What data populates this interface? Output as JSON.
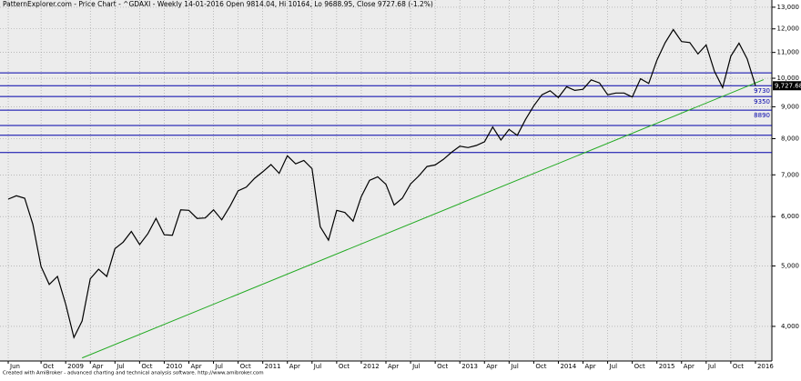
{
  "chart_data": {
    "type": "line",
    "title": "PatternExplorer.com - Price Chart - ^GDAXI - Weekly 14-01-2016 Open 9814.04, Hi 10164, Lo 9688.95, Close 9727.68 (-1.2%)",
    "footer": "Created with AmiBroker - advanced charting and technical analysis software. http://www.amibroker.com",
    "log_scale": true,
    "grid": true,
    "color": "#000000",
    "x": [
      "2008-06",
      "2008-07",
      "2008-08",
      "2008-09",
      "2008-10",
      "2008-11",
      "2008-12",
      "2009-01",
      "2009-02",
      "2009-03",
      "2009-04",
      "2009-05",
      "2009-06",
      "2009-07",
      "2009-08",
      "2009-09",
      "2009-10",
      "2009-11",
      "2009-12",
      "2010-01",
      "2010-02",
      "2010-03",
      "2010-04",
      "2010-05",
      "2010-06",
      "2010-07",
      "2010-08",
      "2010-09",
      "2010-10",
      "2010-11",
      "2010-12",
      "2011-01",
      "2011-02",
      "2011-03",
      "2011-04",
      "2011-05",
      "2011-06",
      "2011-07",
      "2011-08",
      "2011-09",
      "2011-10",
      "2011-11",
      "2011-12",
      "2012-01",
      "2012-02",
      "2012-03",
      "2012-04",
      "2012-05",
      "2012-06",
      "2012-07",
      "2012-08",
      "2012-09",
      "2012-10",
      "2012-11",
      "2012-12",
      "2013-01",
      "2013-02",
      "2013-03",
      "2013-04",
      "2013-05",
      "2013-06",
      "2013-07",
      "2013-08",
      "2013-09",
      "2013-10",
      "2013-11",
      "2013-12",
      "2014-01",
      "2014-02",
      "2014-03",
      "2014-04",
      "2014-05",
      "2014-06",
      "2014-07",
      "2014-08",
      "2014-09",
      "2014-10",
      "2014-11",
      "2014-12",
      "2015-01",
      "2015-02",
      "2015-03",
      "2015-04",
      "2015-05",
      "2015-06",
      "2015-07",
      "2015-08",
      "2015-09",
      "2015-10",
      "2015-11",
      "2015-12",
      "2016-01"
    ],
    "values": [
      6400,
      6480,
      6420,
      5830,
      4990,
      4670,
      4810,
      4340,
      3840,
      4080,
      4770,
      4940,
      4810,
      5330,
      5460,
      5680,
      5410,
      5630,
      5960,
      5610,
      5600,
      6150,
      6140,
      5960,
      5970,
      6150,
      5930,
      6230,
      6600,
      6690,
      6910,
      7080,
      7270,
      7040,
      7510,
      7290,
      7380,
      7160,
      5780,
      5500,
      6140,
      6090,
      5900,
      6460,
      6860,
      6950,
      6760,
      6260,
      6420,
      6770,
      6970,
      7220,
      7260,
      7410,
      7610,
      7780,
      7740,
      7800,
      7910,
      8350,
      7960,
      8280,
      8100,
      8590,
      9030,
      9410,
      9550,
      9310,
      9690,
      9560,
      9600,
      9940,
      9830,
      9410,
      9470,
      9470,
      9330,
      9980,
      9810,
      10690,
      11400,
      11970,
      11450,
      11410,
      10940,
      11310,
      10260,
      9660,
      10850,
      11380,
      10740,
      9727.68
    ],
    "last_label": "9,727.68",
    "xlim": [
      "2008-05",
      "2016-03"
    ],
    "xticks": [
      {
        "value": "2008-06",
        "label": "Jun"
      },
      {
        "value": "2008-10",
        "label": "Oct"
      },
      {
        "value": "2009-01",
        "label": "2009"
      },
      {
        "value": "2009-04",
        "label": "Apr"
      },
      {
        "value": "2009-07",
        "label": "Jul"
      },
      {
        "value": "2009-10",
        "label": "Oct"
      },
      {
        "value": "2010-01",
        "label": "2010"
      },
      {
        "value": "2010-04",
        "label": "Apr"
      },
      {
        "value": "2010-07",
        "label": "Jul"
      },
      {
        "value": "2010-10",
        "label": "Oct"
      },
      {
        "value": "2011-01",
        "label": "2011"
      },
      {
        "value": "2011-04",
        "label": "Apr"
      },
      {
        "value": "2011-07",
        "label": "Jul"
      },
      {
        "value": "2011-10",
        "label": "Oct"
      },
      {
        "value": "2012-01",
        "label": "2012"
      },
      {
        "value": "2012-04",
        "label": "Apr"
      },
      {
        "value": "2012-07",
        "label": "Jul"
      },
      {
        "value": "2012-10",
        "label": "Oct"
      },
      {
        "value": "2013-01",
        "label": "2013"
      },
      {
        "value": "2013-04",
        "label": "Apr"
      },
      {
        "value": "2013-07",
        "label": "Jul"
      },
      {
        "value": "2013-10",
        "label": "Oct"
      },
      {
        "value": "2014-01",
        "label": "2014"
      },
      {
        "value": "2014-04",
        "label": "Apr"
      },
      {
        "value": "2014-07",
        "label": "Jul"
      },
      {
        "value": "2014-10",
        "label": "Oct"
      },
      {
        "value": "2015-01",
        "label": "2015"
      },
      {
        "value": "2015-04",
        "label": "Apr"
      },
      {
        "value": "2015-07",
        "label": "Jul"
      },
      {
        "value": "2015-10",
        "label": "Oct"
      },
      {
        "value": "2016-01",
        "label": "2016"
      }
    ],
    "ylim": [
      3520,
      13350
    ],
    "yticks": [
      {
        "value": 4000,
        "label": "4,000"
      },
      {
        "value": 5000,
        "label": "5,000"
      },
      {
        "value": 6000,
        "label": "6,000"
      },
      {
        "value": 7000,
        "label": "7,000"
      },
      {
        "value": 8000,
        "label": "8,000"
      },
      {
        "value": 9000,
        "label": "9,000"
      },
      {
        "value": 10000,
        "label": "10,000"
      },
      {
        "value": 11000,
        "label": "11,000"
      },
      {
        "value": 12000,
        "label": "12,000"
      },
      {
        "value": 13000,
        "label": "13,000"
      }
    ],
    "level_color": "#0000aa",
    "levels": [
      {
        "value": 10200
      },
      {
        "value": 9730,
        "label": "9730"
      },
      {
        "value": 9350,
        "label": "9350"
      },
      {
        "value": 8890,
        "label": "8890"
      },
      {
        "value": 8400
      },
      {
        "value": 8100
      },
      {
        "value": 7600
      }
    ],
    "trendline": {
      "color": "#22aa22",
      "x": [
        "2009-03",
        "2016-02"
      ],
      "values": [
        3560,
        9950
      ]
    }
  }
}
